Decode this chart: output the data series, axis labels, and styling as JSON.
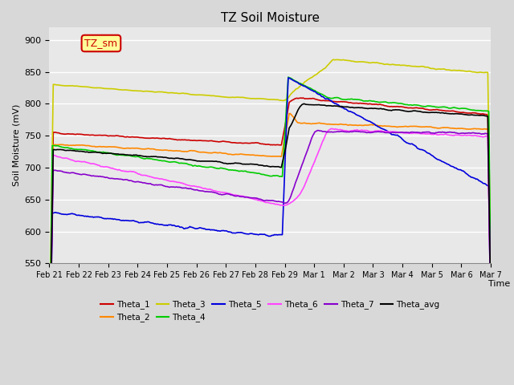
{
  "title": "TZ Soil Moisture",
  "xlabel": "Time",
  "ylabel": "Soil Moisture (mV)",
  "ylim": [
    550,
    920
  ],
  "yticks": [
    550,
    600,
    650,
    700,
    750,
    800,
    850,
    900
  ],
  "bg_color": "#e8e8e8",
  "plot_bg": "#e8e8e8",
  "grid_color": "white",
  "legend_entries": [
    "Theta_1",
    "Theta_2",
    "Theta_3",
    "Theta_4",
    "Theta_5",
    "Theta_6",
    "Theta_7",
    "Theta_avg"
  ],
  "line_colors": {
    "Theta_1": "#cc0000",
    "Theta_2": "#ff8800",
    "Theta_3": "#cccc00",
    "Theta_4": "#00cc00",
    "Theta_5": "#0000dd",
    "Theta_6": "#ff44ff",
    "Theta_7": "#8800cc",
    "Theta_avg": "#000000"
  },
  "annotation_text": "TZ_sm",
  "annotation_color": "#cc0000",
  "annotation_bg": "#ffff99",
  "n_points": 450
}
